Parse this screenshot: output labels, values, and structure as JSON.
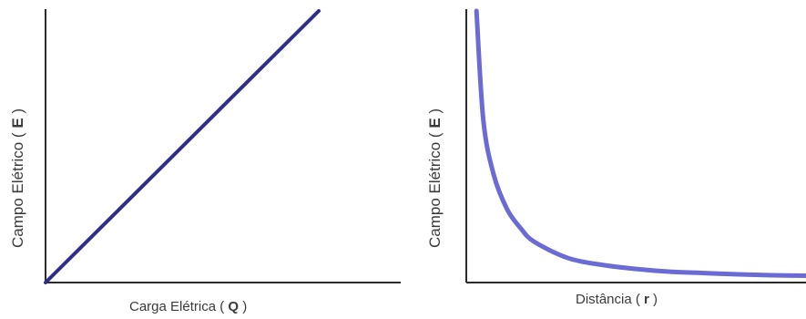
{
  "chart_data": [
    {
      "type": "line",
      "xlabel": "Carga Elétrica ( Q )",
      "xlabel_parts": {
        "text": "Carga Elétrica (",
        "var": "Q",
        "close": ")"
      },
      "ylabel": "Campo Elétrico ( E )",
      "ylabel_parts": {
        "text": "Campo Elétrico (",
        "var": "E",
        "close": ")"
      },
      "relation": "linear",
      "x": [
        0,
        1
      ],
      "y": [
        0,
        1
      ],
      "xlim": [
        0,
        1
      ],
      "ylim": [
        0,
        1
      ],
      "grid": false,
      "line_color": "#2f2f8a"
    },
    {
      "type": "line",
      "xlabel": "Distância ( r )",
      "xlabel_parts": {
        "text": "Distância (",
        "var": "r",
        "close": ")"
      },
      "ylabel": "Campo Elétrico ( E )",
      "ylabel_parts": {
        "text": "Campo Elétrico (",
        "var": "E",
        "close": ")"
      },
      "relation": "inverse-square",
      "x": [
        0.03,
        0.05,
        0.08,
        0.12,
        0.16,
        0.2,
        0.3,
        0.4,
        0.5,
        0.6,
        0.7,
        0.8,
        0.9,
        1.0
      ],
      "y": [
        1.0,
        0.6,
        0.4,
        0.27,
        0.2,
        0.15,
        0.09,
        0.065,
        0.05,
        0.04,
        0.035,
        0.03,
        0.027,
        0.025
      ],
      "xlim": [
        0,
        1
      ],
      "ylim": [
        0,
        1
      ],
      "grid": false,
      "line_color": "#6b6bd6"
    }
  ]
}
